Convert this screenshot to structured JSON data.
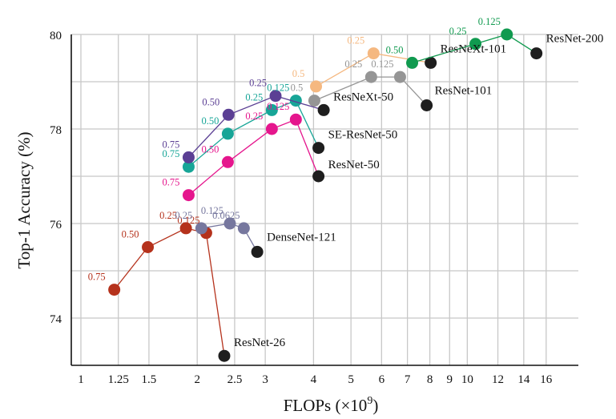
{
  "chart_data": {
    "type": "line",
    "title": "",
    "xlabel": "FLOPs (×10",
    "xlabel_sup": "9",
    "xlabel_close": ")",
    "ylabel": "Top-1 Accuracy (%)",
    "xscale": "log2",
    "xlim": [
      0.92,
      21.0
    ],
    "ylim": [
      73.0,
      80.0
    ],
    "grid": true,
    "xticks": [
      1,
      1.25,
      1.5,
      2,
      2.5,
      3,
      4,
      5,
      6,
      7,
      8,
      9,
      10,
      12,
      14,
      16
    ],
    "xtick_labels": [
      "1",
      "1.25",
      "1.5",
      "2",
      "2.5",
      "3",
      "4",
      "5",
      "6",
      "7",
      "8",
      "9",
      "10",
      "12",
      "14",
      "16"
    ],
    "yticks_grid": [
      74,
      75,
      76,
      77,
      78,
      79,
      80
    ],
    "yticks_labeled": [
      74,
      76,
      78,
      80
    ],
    "ytick_labels": [
      "74",
      "76",
      "78",
      "80"
    ],
    "series": [
      {
        "name": "ResNet-26",
        "color": "#b5321c",
        "points": [
          {
            "x": 1.22,
            "y": 74.6,
            "label": "0.75"
          },
          {
            "x": 1.49,
            "y": 75.5,
            "label": "0.50"
          },
          {
            "x": 1.87,
            "y": 75.9,
            "label": "0.25"
          },
          {
            "x": 2.11,
            "y": 75.8,
            "label": "0.125"
          }
        ],
        "baseline": {
          "x": 2.35,
          "y": 73.2,
          "label": "ResNet-26"
        }
      },
      {
        "name": "DenseNet-121",
        "color": "#76779e",
        "points": [
          {
            "x": 2.05,
            "y": 75.9,
            "label": "0.25"
          },
          {
            "x": 2.43,
            "y": 76.0,
            "label": "0.125"
          },
          {
            "x": 2.64,
            "y": 75.9,
            "label": "0.0625"
          }
        ],
        "baseline": {
          "x": 2.86,
          "y": 75.4,
          "label": "DenseNet-121"
        }
      },
      {
        "name": "ResNet-50",
        "color": "#e5168d",
        "points": [
          {
            "x": 1.9,
            "y": 76.6,
            "label": "0.75"
          },
          {
            "x": 2.4,
            "y": 77.3,
            "label": "0.50"
          },
          {
            "x": 3.12,
            "y": 78.0,
            "label": "0.25"
          },
          {
            "x": 3.6,
            "y": 78.2,
            "label": "0.125"
          }
        ],
        "baseline": {
          "x": 4.12,
          "y": 77.0,
          "label": "ResNet-50"
        }
      },
      {
        "name": "SE-ResNet-50",
        "color": "#17a597",
        "points": [
          {
            "x": 1.9,
            "y": 77.2,
            "label": "0.75"
          },
          {
            "x": 2.4,
            "y": 77.9,
            "label": "0.50"
          },
          {
            "x": 3.12,
            "y": 78.4,
            "label": "0.25"
          },
          {
            "x": 3.6,
            "y": 78.6,
            "label": "0.125"
          }
        ],
        "baseline": {
          "x": 4.12,
          "y": 77.6,
          "label": "SE-ResNet-50"
        }
      },
      {
        "name": "ResNeXt-50",
        "color": "#5b3f94",
        "points": [
          {
            "x": 1.9,
            "y": 77.4,
            "label": "0.75"
          },
          {
            "x": 2.41,
            "y": 78.3,
            "label": "0.50"
          },
          {
            "x": 3.19,
            "y": 78.7,
            "label": "0.25"
          }
        ],
        "baseline": {
          "x": 4.25,
          "y": 78.4,
          "label": "ResNeXt-50"
        }
      },
      {
        "name": "ResNet-101",
        "color": "#959595",
        "points": [
          {
            "x": 4.02,
            "y": 78.6,
            "label": "0.5"
          },
          {
            "x": 5.64,
            "y": 79.1,
            "label": "0.25"
          },
          {
            "x": 6.7,
            "y": 79.1,
            "label": "0.125"
          }
        ],
        "baseline": {
          "x": 7.85,
          "y": 78.5,
          "label": "ResNet-101"
        }
      },
      {
        "name": "ResNeXt-101",
        "color": "#f5b880",
        "points": [
          {
            "x": 4.06,
            "y": 78.9,
            "label": "0.5"
          },
          {
            "x": 5.72,
            "y": 79.6,
            "label": "0.25"
          }
        ],
        "baseline": {
          "x": 8.04,
          "y": 79.4,
          "label": "ResNeXt-101"
        }
      },
      {
        "name": "ResNet-200",
        "color": "#109a4f",
        "points": [
          {
            "x": 7.2,
            "y": 79.4,
            "label": "0.50"
          },
          {
            "x": 10.5,
            "y": 79.8,
            "label": "0.25"
          },
          {
            "x": 12.66,
            "y": 80.0,
            "label": "0.125"
          }
        ],
        "baseline": {
          "x": 15.1,
          "y": 79.6,
          "label": "ResNet-200"
        }
      }
    ],
    "baseline_color": "#1e1e1e"
  }
}
